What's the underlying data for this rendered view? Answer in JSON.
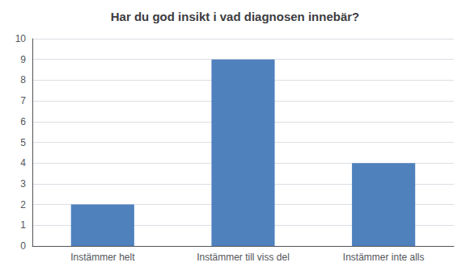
{
  "chart_data": {
    "type": "bar",
    "title": "Har du god insikt i vad diagnosen innebär?",
    "categories": [
      "Instämmer helt",
      "Instämmer till viss del",
      "Instämmer inte alls"
    ],
    "values": [
      2,
      9,
      4
    ],
    "color": "#4F81BD",
    "ylim": [
      0,
      10
    ],
    "yticks": [
      0,
      1,
      2,
      3,
      4,
      5,
      6,
      7,
      8,
      9,
      10
    ],
    "grid": true
  }
}
